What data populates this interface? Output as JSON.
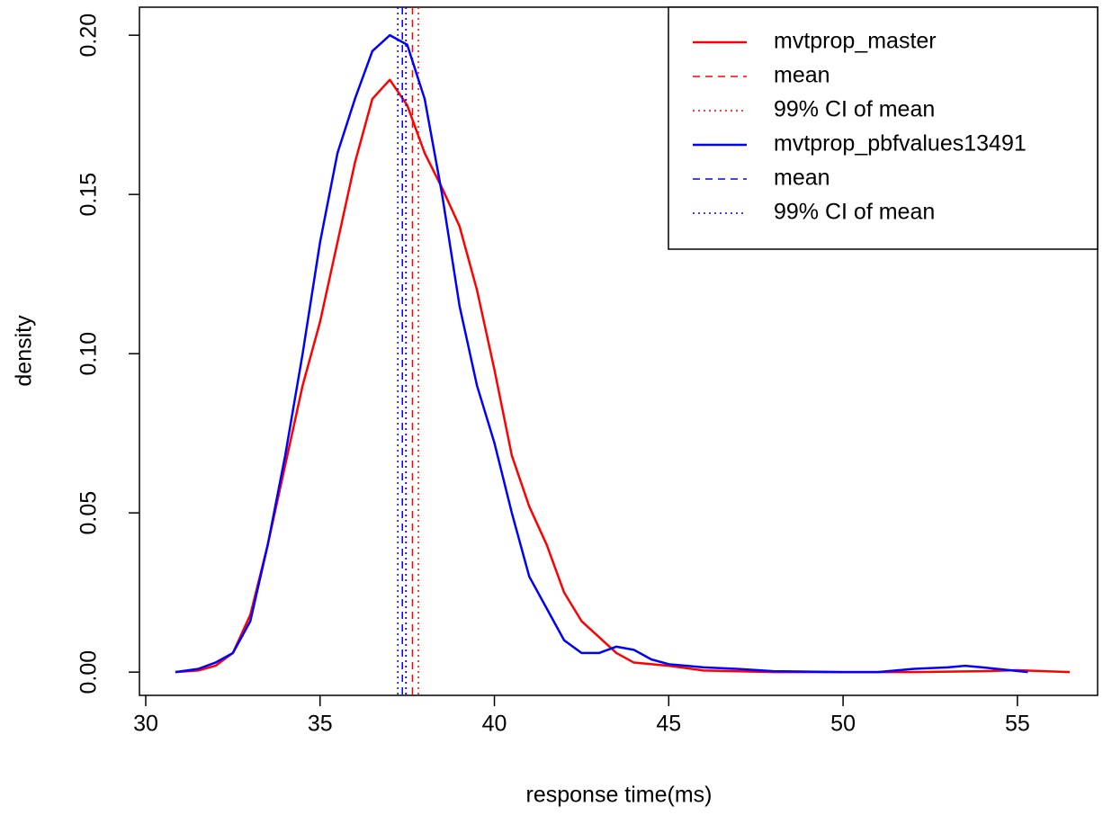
{
  "chart_data": {
    "type": "line",
    "xlabel": "response time(ms)",
    "ylabel": "density",
    "xlim": [
      29.82,
      57.3
    ],
    "ylim": [
      -0.0073,
      0.2088
    ],
    "xticks": [
      30,
      35,
      40,
      45,
      50,
      55
    ],
    "yticks": [
      {
        "value": 0,
        "label": "0.00"
      },
      {
        "value": 0.05,
        "label": "0.05"
      },
      {
        "value": 0.1,
        "label": "0.10"
      },
      {
        "value": 0.15,
        "label": "0.15"
      },
      {
        "value": 0.2,
        "label": "0.20"
      }
    ],
    "legend": "top-right",
    "series": [
      {
        "name": "mvtprop_master",
        "color": "#ff0000",
        "mean_label": "mean",
        "ci_label": "99% CI  of mean",
        "mean": 37.65,
        "ci": [
          37.47,
          37.82
        ],
        "x": [
          30.85,
          31.5,
          32,
          32.5,
          33,
          33.5,
          34,
          34.5,
          35,
          35.5,
          36,
          36.5,
          37,
          37.5,
          38,
          38.5,
          39,
          39.5,
          40,
          40.5,
          41,
          41.5,
          42,
          42.5,
          43,
          43.5,
          44,
          45,
          46,
          48,
          50,
          52,
          54,
          55,
          56.5
        ],
        "y": [
          0,
          0.0005,
          0.002,
          0.006,
          0.018,
          0.04,
          0.065,
          0.09,
          0.11,
          0.135,
          0.16,
          0.18,
          0.186,
          0.178,
          0.163,
          0.152,
          0.14,
          0.12,
          0.095,
          0.068,
          0.052,
          0.04,
          0.025,
          0.016,
          0.011,
          0.006,
          0.003,
          0.002,
          0.0005,
          0,
          0,
          0,
          0.0003,
          0.0006,
          0
        ]
      },
      {
        "name": "mvtprop_pbfvalues13491",
        "color": "#0000ff",
        "mean_label": "mean",
        "ci_label": "99% CI  of mean",
        "mean": 37.36,
        "ci": [
          37.23,
          37.46
        ],
        "x": [
          30.85,
          31.5,
          32,
          32.5,
          33,
          33.5,
          34,
          34.5,
          35,
          35.5,
          36,
          36.5,
          37,
          37.5,
          38,
          38.5,
          39,
          39.5,
          40,
          40.5,
          41,
          41.5,
          42,
          42.5,
          43,
          43.5,
          44,
          44.5,
          45,
          46,
          47,
          48,
          50,
          51,
          52,
          53,
          53.5,
          54,
          55.3
        ],
        "y": [
          0,
          0.001,
          0.003,
          0.006,
          0.016,
          0.04,
          0.068,
          0.1,
          0.135,
          0.163,
          0.18,
          0.195,
          0.2,
          0.197,
          0.18,
          0.15,
          0.115,
          0.09,
          0.072,
          0.05,
          0.03,
          0.02,
          0.01,
          0.006,
          0.006,
          0.008,
          0.007,
          0.004,
          0.0025,
          0.0015,
          0.001,
          0.0003,
          0,
          0,
          0.001,
          0.0015,
          0.002,
          0.0015,
          0
        ]
      }
    ]
  }
}
